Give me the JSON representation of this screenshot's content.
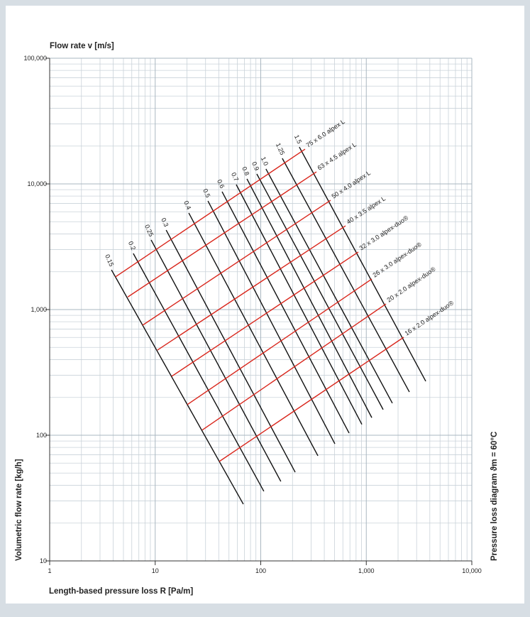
{
  "chart_data": {
    "type": "line",
    "title": "Pressure loss diagram ϑm = 60°C",
    "top_label": "Flow rate   v [m/s]",
    "x_label": "Length-based pressure loss  R  [Pa/m]",
    "y_label": "Volumetric flow rate  [kg/h]",
    "xscale": "log",
    "yscale": "log",
    "grid": true,
    "xlim": [
      1,
      10000
    ],
    "ylim": [
      10,
      100000
    ],
    "xticks": [
      1,
      10,
      100,
      {
        "value": 1000,
        "label": "1,000"
      },
      {
        "value": 10000,
        "label": "10,000"
      }
    ],
    "yticks": [
      10,
      100,
      {
        "value": 1000,
        "label": "1,000"
      },
      {
        "value": 10000,
        "label": "10,000"
      },
      {
        "value": 100000,
        "label": "100,000"
      }
    ],
    "series": [
      {
        "name": "0.15",
        "color": "#111111",
        "x": [
          3.85,
          68.4
        ],
        "values": [
          2070,
          28.3
        ]
      },
      {
        "name": "0.2",
        "color": "#111111",
        "x": [
          6.2,
          107
        ],
        "values": [
          2795,
          35.8
        ]
      },
      {
        "name": "0.25",
        "color": "#111111",
        "x": [
          9.15,
          155
        ],
        "values": [
          3580,
          42.9
        ]
      },
      {
        "name": "0.3",
        "color": "#111111",
        "x": [
          12.7,
          212
        ],
        "values": [
          4290,
          50.8
        ]
      },
      {
        "name": "0.4",
        "color": "#111111",
        "x": [
          20.8,
          348
        ],
        "values": [
          5870,
          68.6
        ]
      },
      {
        "name": "0.5",
        "color": "#111111",
        "x": [
          31.6,
          504
        ],
        "values": [
          7310,
          85.5
        ]
      },
      {
        "name": "0.6",
        "color": "#111111",
        "x": [
          43,
          687
        ],
        "values": [
          8670,
          104
        ]
      },
      {
        "name": "0.7",
        "color": "#111111",
        "x": [
          58.6,
          908
        ],
        "values": [
          9870,
          122
        ]
      },
      {
        "name": "0.8",
        "color": "#111111",
        "x": [
          74,
          1128
        ],
        "values": [
          10960,
          138
        ]
      },
      {
        "name": "0.9",
        "color": "#111111",
        "x": [
          91.8,
          1445
        ],
        "values": [
          12000,
          160
        ]
      },
      {
        "name": "1.0",
        "color": "#111111",
        "x": [
          112,
          1766
        ],
        "values": [
          13150,
          180
        ]
      },
      {
        "name": "1.25",
        "color": "#111111",
        "x": [
          160,
          2560
        ],
        "values": [
          15970,
          221
        ]
      },
      {
        "name": "1.5",
        "color": "#111111",
        "x": [
          232,
          3660
        ],
        "values": [
          19660,
          269
        ]
      },
      {
        "name": "75 x 6.0 alpex L",
        "color": "#d9261c",
        "x": [
          4.2,
          263
        ],
        "values": [
          1820,
          18900
        ]
      },
      {
        "name": "63 x 4.5 alpex L",
        "color": "#d9261c",
        "x": [
          5.5,
          337
        ],
        "values": [
          1260,
          12470
        ]
      },
      {
        "name": "50 x 4.0 alpex L",
        "color": "#d9261c",
        "x": [
          7.6,
          459
        ],
        "values": [
          751,
          7410
        ]
      },
      {
        "name": "40 x 3.5 alpex L",
        "color": "#d9261c",
        "x": [
          10.5,
          636
        ],
        "values": [
          476,
          4640
        ]
      },
      {
        "name": "32 x 3.0 alpex-duo®",
        "color": "#d9261c",
        "x": [
          14.3,
          840
        ],
        "values": [
          294,
          2870
        ]
      },
      {
        "name": "26 x 3.0 alpex-duo®",
        "color": "#d9261c",
        "x": [
          20.1,
          1128
        ],
        "values": [
          175,
          1750
        ]
      },
      {
        "name": "20 x 2.0 alpex-duo®",
        "color": "#d9261c",
        "x": [
          27.9,
          1537
        ],
        "values": [
          110,
          1109
        ]
      },
      {
        "name": "16 x 2.0 alpex-duo®",
        "color": "#d9261c",
        "x": [
          40.4,
          2263
        ],
        "values": [
          61.8,
          602
        ]
      }
    ]
  }
}
